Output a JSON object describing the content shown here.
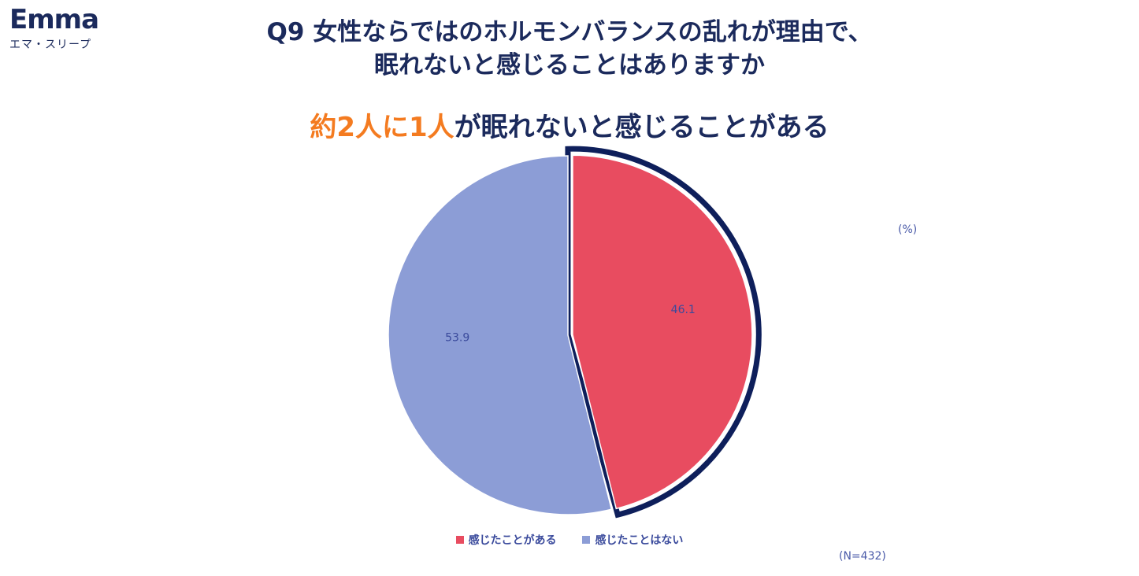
{
  "logo": {
    "word": "Emma",
    "sub": "エマ・スリープ"
  },
  "title": {
    "line1": "Q9 女性ならではのホルモンバランスの乱れが理由で、",
    "line2": "眠れないと感じることはありますか"
  },
  "headline": {
    "accent": "約2人に1人",
    "rest": "が眠れないと感じることがある"
  },
  "unit_label": "(%)",
  "n_label": "(N=432)",
  "colors": {
    "accent": "#f47b20",
    "navy": "#0e1f5b",
    "slice_yes": "#e84c60",
    "slice_no": "#8c9dd6",
    "data_label": "#3a4a9c"
  },
  "chart_data": {
    "type": "pie",
    "slices": [
      {
        "label": "感じたことがある",
        "value": 46.1,
        "color": "#e84c60",
        "highlighted": true
      },
      {
        "label": "感じたことはない",
        "value": 53.9,
        "color": "#8c9dd6",
        "highlighted": false
      }
    ],
    "data_labels": [
      "46.1",
      "53.9"
    ],
    "legend_position": "bottom",
    "start_angle": "12 o'clock, clockwise"
  }
}
